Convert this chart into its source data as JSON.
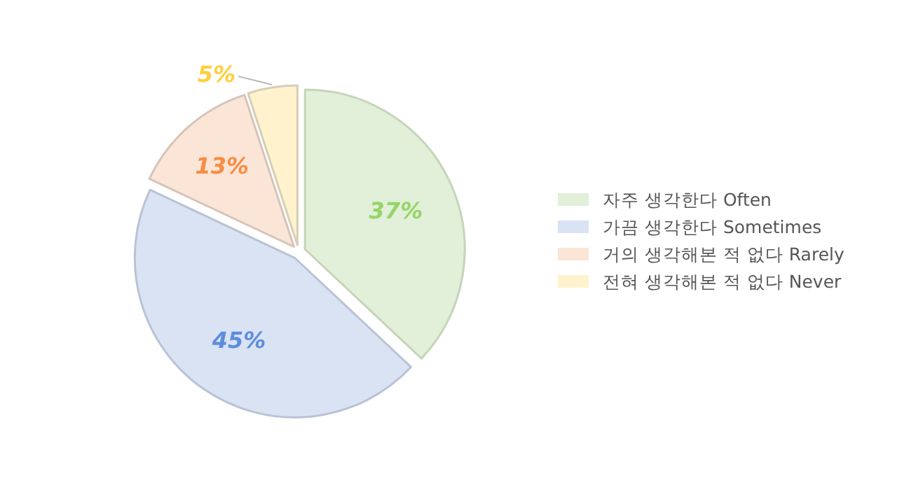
{
  "chart_data": {
    "type": "pie",
    "categories": [
      "자주 생각한다 Often",
      "가끔 생각한다 Sometimes",
      "거의 생각해본 적 없다 Rarely",
      "전혀 생각해본 적 없다 Never"
    ],
    "values": [
      37,
      45,
      13,
      5
    ],
    "colors": [
      "#e2efd9",
      "#dae3f3",
      "#fbe5d6",
      "#fff2cc"
    ],
    "value_labels": [
      "37%",
      "45%",
      "13%",
      "5%"
    ],
    "legend": "right"
  }
}
